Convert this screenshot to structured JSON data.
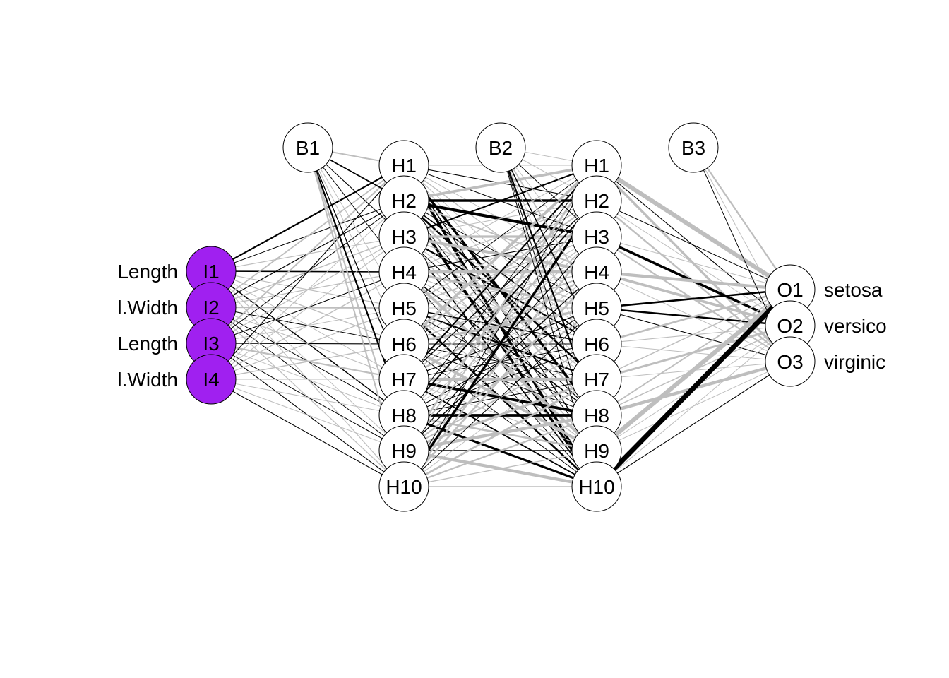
{
  "diagram": {
    "input_nodes": [
      {
        "id": "I1",
        "label": "Length"
      },
      {
        "id": "I2",
        "label": "l.Width"
      },
      {
        "id": "I3",
        "label": "Length"
      },
      {
        "id": "I4",
        "label": "l.Width"
      }
    ],
    "hidden_layer_1": [
      "H1",
      "H2",
      "H3",
      "H4",
      "H5",
      "H6",
      "H7",
      "H8",
      "H9",
      "H10"
    ],
    "hidden_layer_2": [
      "H1",
      "H2",
      "H3",
      "H4",
      "H5",
      "H6",
      "H7",
      "H8",
      "H9",
      "H10"
    ],
    "bias_nodes": [
      "B1",
      "B2",
      "B3"
    ],
    "output_nodes": [
      {
        "id": "O1",
        "label": "setosa"
      },
      {
        "id": "O2",
        "label": "versico"
      },
      {
        "id": "O3",
        "label": "virginic"
      }
    ],
    "colors": {
      "input_fill": "#A020F0",
      "node_fill": "#FFFFFF",
      "node_stroke": "#000000",
      "positive_weight": "#000000",
      "negative_weight": "#BEBEBE"
    }
  }
}
